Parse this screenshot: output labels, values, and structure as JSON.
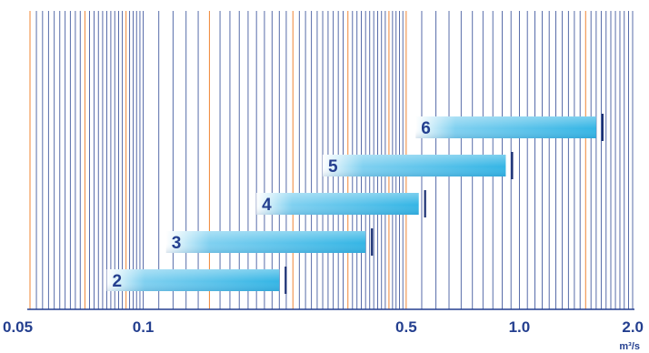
{
  "chart_data": {
    "type": "bar",
    "orientation": "horizontal",
    "x_scale": "log",
    "xlim": [
      0.05,
      2.0
    ],
    "xticks": [
      0.05,
      0.1,
      0.5,
      1.0,
      2.0
    ],
    "xtick_labels": [
      "0.05",
      "0.1",
      "0.5",
      "1.0",
      "2.0"
    ],
    "x_unit": "m³/s",
    "grid": true,
    "colors": {
      "grid_blue": "#243f8f",
      "grid_orange": "#f08a3c",
      "text": "#243f8f",
      "bar_start": "#ffffff",
      "bar_end": "#34b5e5",
      "end_marker": "#1a2f73"
    },
    "bars": [
      {
        "label": "2",
        "start": 0.08,
        "end": 0.23
      },
      {
        "label": "3",
        "start": 0.115,
        "end": 0.39
      },
      {
        "label": "4",
        "start": 0.2,
        "end": 0.54
      },
      {
        "label": "5",
        "start": 0.3,
        "end": 0.92
      },
      {
        "label": "6",
        "start": 0.53,
        "end": 1.6
      }
    ]
  }
}
